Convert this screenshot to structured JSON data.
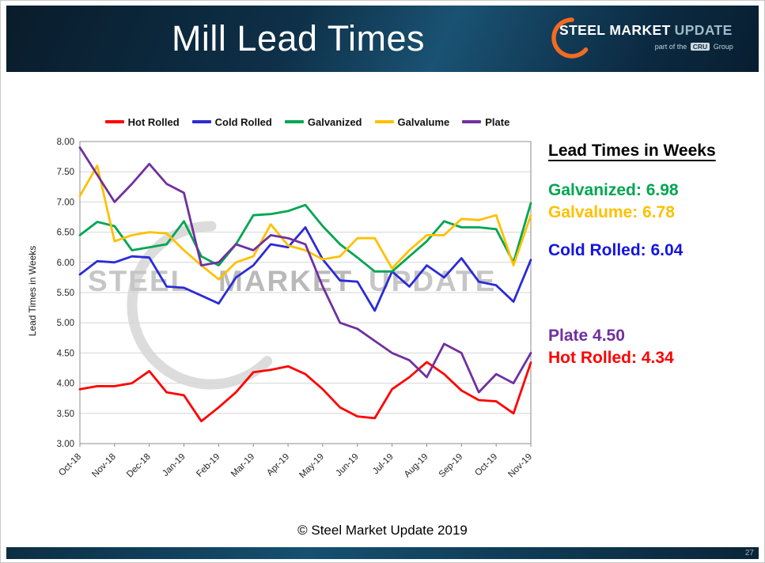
{
  "slide": {
    "title": "Mill Lead Times",
    "footer": "© Steel Market Update 2019",
    "page_number": "27"
  },
  "logo": {
    "word1": "STEEL",
    "word2": "MARKET",
    "word3": "UPDATE",
    "tagline_prefix": "part of the",
    "tagline_cru": "CRU",
    "tagline_suffix": "Group"
  },
  "watermark": {
    "word1": "STEEL",
    "word2": "MARKET",
    "word3": "UPDATE"
  },
  "annotations": {
    "heading": "Lead Times in Weeks",
    "items": [
      {
        "label": "Galvanized: 6.98",
        "color": "#00A651"
      },
      {
        "label": "Galvalume: 6.78",
        "color": "#FFC000"
      },
      {
        "label": "Cold Rolled: 6.04",
        "color": "#1414E0"
      },
      {
        "label": "Plate 4.50",
        "color": "#7030A0"
      },
      {
        "label": "Hot Rolled: 4.34",
        "color": "#FF0000"
      }
    ]
  },
  "chart_data": {
    "type": "line",
    "title": "Mill Lead Times",
    "ylabel": "Lead Times in Weeks",
    "xlabel": "",
    "ylim": [
      3.0,
      8.0
    ],
    "ytick_step": 0.5,
    "grid": true,
    "legend_position": "top",
    "categories": [
      "Oct-18",
      "Nov-18",
      "Dec-18",
      "Jan-19",
      "Feb-19",
      "Mar-19",
      "Apr-19",
      "May-19",
      "Jun-19",
      "Jul-19",
      "Aug-19",
      "Sep-19",
      "Oct-19",
      "Nov-19"
    ],
    "points_per_label": 2,
    "series": [
      {
        "name": "Hot Rolled",
        "color": "#FF0000",
        "values": [
          3.9,
          3.95,
          3.95,
          4.0,
          4.2,
          3.85,
          3.8,
          3.37,
          3.6,
          3.85,
          4.18,
          4.22,
          4.28,
          4.15,
          3.9,
          3.6,
          3.45,
          3.42,
          3.9,
          4.1,
          4.35,
          4.15,
          3.88,
          3.72,
          3.7,
          3.5,
          4.34
        ]
      },
      {
        "name": "Cold Rolled",
        "color": "#2B2BD5",
        "values": [
          5.8,
          6.02,
          6.0,
          6.1,
          6.08,
          5.6,
          5.58,
          5.45,
          5.32,
          5.75,
          5.95,
          6.3,
          6.25,
          6.58,
          6.05,
          5.7,
          5.68,
          5.2,
          5.85,
          5.6,
          5.95,
          5.75,
          6.07,
          5.68,
          5.62,
          5.35,
          6.04
        ]
      },
      {
        "name": "Galvanized",
        "color": "#00A651",
        "values": [
          6.45,
          6.67,
          6.6,
          6.2,
          6.25,
          6.3,
          6.68,
          6.1,
          5.95,
          6.3,
          6.78,
          6.8,
          6.85,
          6.95,
          6.6,
          6.3,
          6.08,
          5.85,
          5.85,
          6.1,
          6.35,
          6.68,
          6.58,
          6.58,
          6.55,
          6.0,
          6.98
        ]
      },
      {
        "name": "Galvalume",
        "color": "#FFC000",
        "values": [
          7.1,
          7.6,
          6.35,
          6.45,
          6.5,
          6.48,
          6.2,
          5.95,
          5.72,
          6.0,
          6.1,
          6.63,
          6.28,
          6.2,
          6.05,
          6.1,
          6.4,
          6.4,
          5.9,
          6.2,
          6.45,
          6.45,
          6.72,
          6.7,
          6.78,
          5.95,
          6.78
        ]
      },
      {
        "name": "Plate",
        "color": "#7030A0",
        "values": [
          7.9,
          7.45,
          7.0,
          7.3,
          7.63,
          7.3,
          7.15,
          5.95,
          6.0,
          6.3,
          6.2,
          6.45,
          6.4,
          6.3,
          5.6,
          5.0,
          4.9,
          4.7,
          4.5,
          4.38,
          4.1,
          4.65,
          4.5,
          3.85,
          4.15,
          4.0,
          4.5
        ]
      }
    ]
  }
}
